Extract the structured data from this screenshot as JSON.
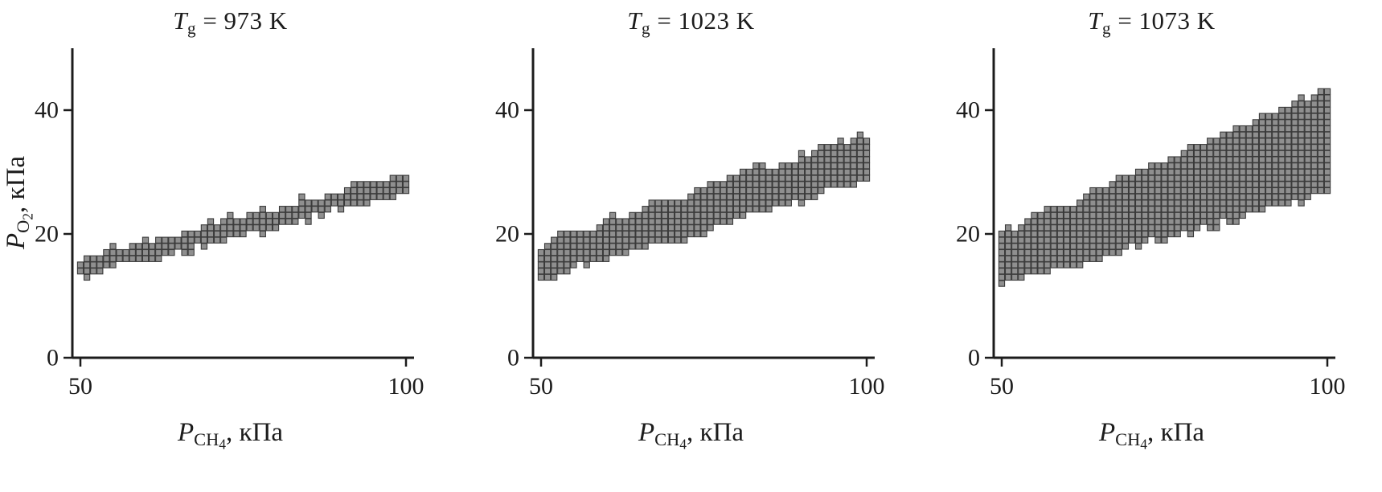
{
  "figure": {
    "background": "#ffffff",
    "axis_color": "#1c1c1c",
    "text_color": "#1c1c1c",
    "point_fill": "#8f8f8f",
    "point_stroke": "#3a3a3a"
  },
  "labels": {
    "ylabel": {
      "symbol": "P",
      "sub": "O",
      "subsub": "2",
      "suffix": ", кПа"
    },
    "xlabel": {
      "symbol": "P",
      "sub": "CH",
      "subsub": "4",
      "suffix": ", кПа"
    }
  },
  "chart_data": [
    {
      "type": "scatter",
      "title": {
        "symbol": "T",
        "subscript": "g",
        "rest": " = 973 K"
      },
      "title_text": "Tg = 973 K",
      "xlabel": "P_CH4, кПа",
      "ylabel": "P_O2, кПа",
      "xticks": [
        50,
        100
      ],
      "yticks": [
        0,
        20,
        40
      ],
      "xlim": [
        50,
        100
      ],
      "ylim": [
        0,
        50
      ],
      "legend": "none",
      "grid": false,
      "band": {
        "x_start": 50,
        "x_end": 100,
        "x_step": 1,
        "y_step": 1,
        "lower_start": 13.2,
        "lower_end": 27.2,
        "upper_start": 15.6,
        "upper_end": 29.2
      }
    },
    {
      "type": "scatter",
      "title": {
        "symbol": "T",
        "subscript": "g",
        "rest": " = 1023 K"
      },
      "title_text": "Tg = 1023 K",
      "xlabel": "P_CH4, кПа",
      "ylabel": "P_O2, кПа",
      "xticks": [
        50,
        100
      ],
      "yticks": [
        0,
        20,
        40
      ],
      "xlim": [
        50,
        100
      ],
      "ylim": [
        0,
        50
      ],
      "legend": "none",
      "grid": false,
      "band": {
        "x_start": 50,
        "x_end": 100,
        "x_step": 1,
        "y_step": 1,
        "lower_start": 13.0,
        "lower_end": 29.0,
        "upper_start": 18.0,
        "upper_end": 36.0
      }
    },
    {
      "type": "scatter",
      "title": {
        "symbol": "T",
        "subscript": "g",
        "rest": " = 1073 K"
      },
      "title_text": "Tg = 1073 K",
      "xlabel": "P_CH4, кПа",
      "ylabel": "P_O2, кПа",
      "xticks": [
        50,
        100
      ],
      "yticks": [
        0,
        20,
        40
      ],
      "xlim": [
        50,
        100
      ],
      "ylim": [
        0,
        50
      ],
      "legend": "none",
      "grid": false,
      "band": {
        "x_start": 50,
        "x_end": 100,
        "x_step": 1,
        "y_step": 1,
        "lower_start": 12.0,
        "lower_end": 27.0,
        "upper_start": 20.0,
        "upper_end": 43.0
      }
    }
  ]
}
